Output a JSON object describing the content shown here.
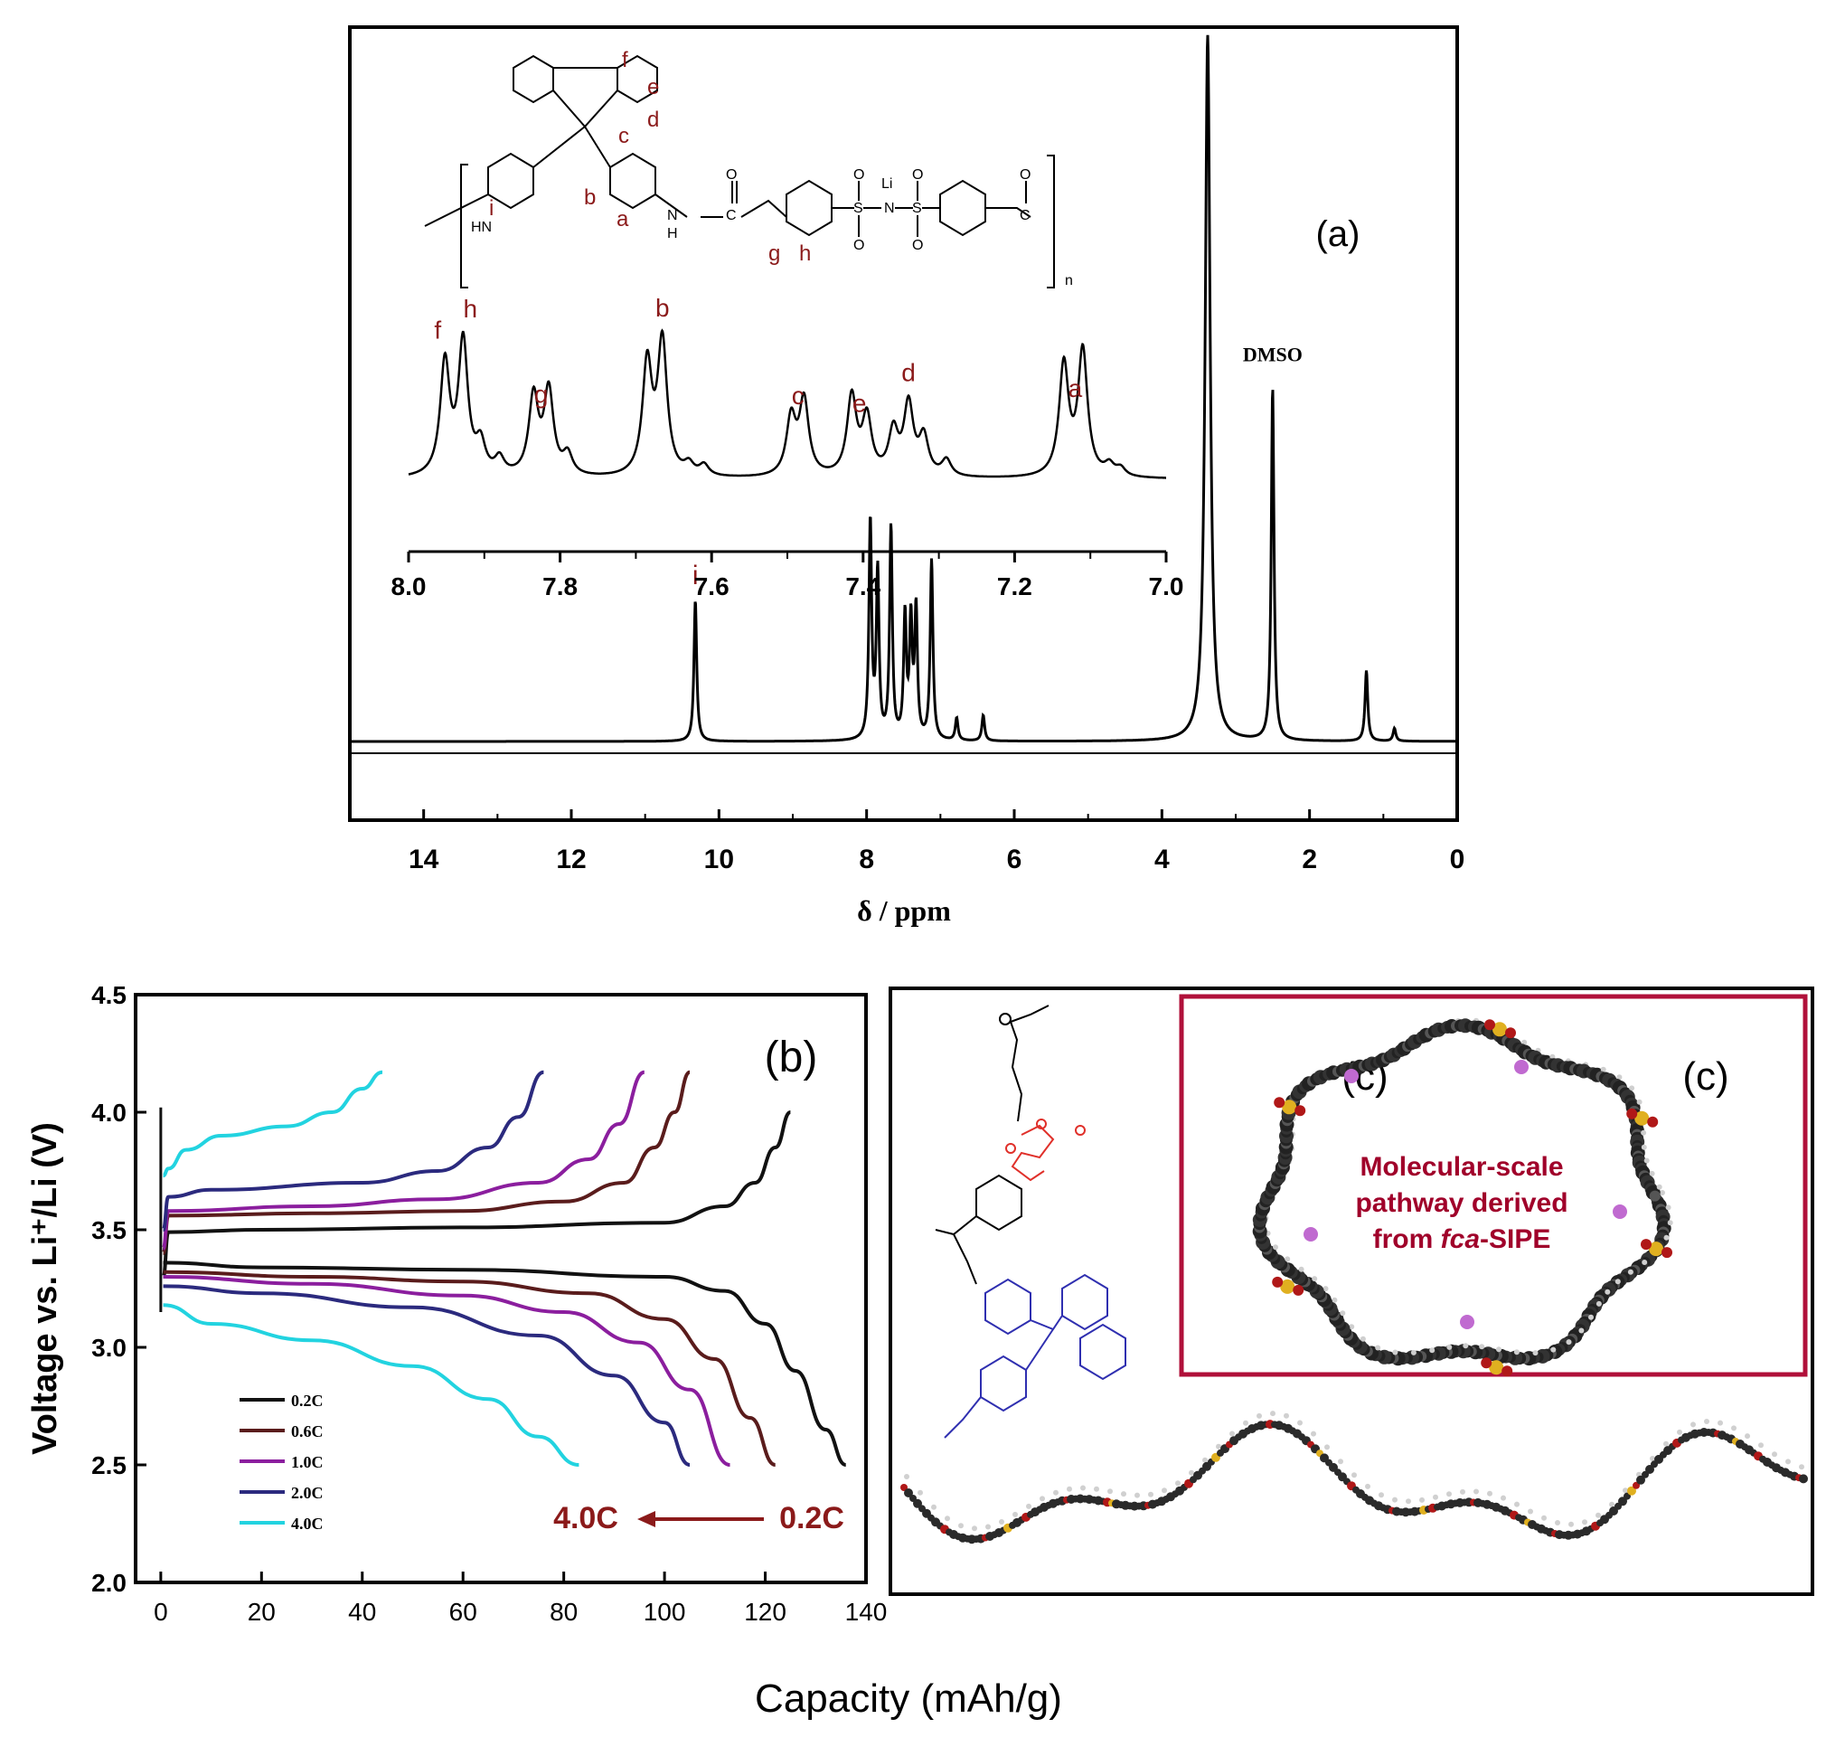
{
  "chart_data": [
    {
      "panel": "(a)",
      "type": "line",
      "xlabel": "δ / ppm",
      "xlim": [
        15,
        0
      ],
      "x_ticks": [
        "14",
        "12",
        "10",
        "8",
        "6",
        "4",
        "2",
        "0"
      ],
      "peaks": [
        {
          "x": 10.32,
          "y": 0.44,
          "label": "i"
        },
        {
          "x": 7.95,
          "y": 0.68
        },
        {
          "x": 7.85,
          "y": 0.52
        },
        {
          "x": 7.67,
          "y": 0.66
        },
        {
          "x": 7.48,
          "y": 0.38
        },
        {
          "x": 7.4,
          "y": 0.36
        },
        {
          "x": 7.33,
          "y": 0.4
        },
        {
          "x": 7.12,
          "y": 0.56
        },
        {
          "x": 6.78,
          "y": 0.07
        },
        {
          "x": 6.42,
          "y": 0.08
        },
        {
          "x": 3.38,
          "y": 2.2
        },
        {
          "x": 2.5,
          "y": 1.1,
          "label": "DMSO"
        },
        {
          "x": 1.23,
          "y": 0.22
        },
        {
          "x": 0.85,
          "y": 0.04
        }
      ],
      "peak_label_dmso": "DMSO",
      "inset": {
        "xlim": [
          8.0,
          7.0
        ],
        "x_ticks": [
          "8.0",
          "7.8",
          "7.6",
          "7.4",
          "7.2",
          "7.0"
        ],
        "peaks": [
          {
            "x": 7.952,
            "y": 0.83
          },
          {
            "x": 7.928,
            "y": 0.98
          },
          {
            "x": 7.905,
            "y": 0.22
          },
          {
            "x": 7.88,
            "y": 0.12
          },
          {
            "x": 7.835,
            "y": 0.58
          },
          {
            "x": 7.815,
            "y": 0.62
          },
          {
            "x": 7.79,
            "y": 0.15
          },
          {
            "x": 7.685,
            "y": 0.82
          },
          {
            "x": 7.665,
            "y": 0.98
          },
          {
            "x": 7.63,
            "y": 0.08
          },
          {
            "x": 7.61,
            "y": 0.08
          },
          {
            "x": 7.495,
            "y": 0.42
          },
          {
            "x": 7.478,
            "y": 0.55
          },
          {
            "x": 7.415,
            "y": 0.58
          },
          {
            "x": 7.395,
            "y": 0.42
          },
          {
            "x": 7.36,
            "y": 0.32
          },
          {
            "x": 7.34,
            "y": 0.52
          },
          {
            "x": 7.32,
            "y": 0.28
          },
          {
            "x": 7.29,
            "y": 0.12
          },
          {
            "x": 7.135,
            "y": 0.82
          },
          {
            "x": 7.11,
            "y": 0.92
          },
          {
            "x": 7.075,
            "y": 0.08
          },
          {
            "x": 7.06,
            "y": 0.06
          }
        ],
        "peak_labels": [
          {
            "label": "f",
            "x": 7.952
          },
          {
            "label": "h",
            "x": 7.928
          },
          {
            "label": "g",
            "x": 7.825
          },
          {
            "label": "b",
            "x": 7.665
          },
          {
            "label": "c",
            "x": 7.486
          },
          {
            "label": "e",
            "x": 7.405
          },
          {
            "label": "d",
            "x": 7.34
          },
          {
            "label": "a",
            "x": 7.12
          }
        ]
      }
    },
    {
      "panel": "(b)",
      "type": "line",
      "xlabel": "Capacity (mAh/g)",
      "ylabel": "Voltage vs. Li⁺/Li (V)",
      "xlim": [
        -5,
        140
      ],
      "ylim": [
        2.0,
        4.5
      ],
      "x_ticks": [
        "0",
        "20",
        "40",
        "60",
        "80",
        "100",
        "120",
        "140"
      ],
      "y_ticks": [
        "2.0",
        "2.5",
        "3.0",
        "3.5",
        "4.0",
        "4.5"
      ],
      "rate_annotation": {
        "from": "4.0C",
        "to": "0.2C"
      },
      "series": [
        {
          "name": "0.2C",
          "color": "#111111",
          "charge": [
            [
              0.5,
              3.3
            ],
            [
              1.5,
              3.49
            ],
            [
              20,
              3.5
            ],
            [
              60,
              3.51
            ],
            [
              100,
              3.53
            ],
            [
              112,
              3.6
            ],
            [
              118,
              3.7
            ],
            [
              122,
              3.85
            ],
            [
              125,
              4.0
            ]
          ],
          "discharge": [
            [
              0.5,
              3.36
            ],
            [
              20,
              3.34
            ],
            [
              60,
              3.33
            ],
            [
              100,
              3.3
            ],
            [
              112,
              3.24
            ],
            [
              120,
              3.1
            ],
            [
              126,
              2.9
            ],
            [
              132,
              2.65
            ],
            [
              136,
              2.5
            ]
          ]
        },
        {
          "name": "0.6C",
          "color": "#5a1c1c",
          "charge": [
            [
              0.5,
              3.4
            ],
            [
              1.5,
              3.56
            ],
            [
              30,
              3.57
            ],
            [
              60,
              3.58
            ],
            [
              80,
              3.62
            ],
            [
              92,
              3.7
            ],
            [
              98,
              3.85
            ],
            [
              102,
              4.0
            ],
            [
              105,
              4.17
            ]
          ],
          "discharge": [
            [
              0.5,
              3.32
            ],
            [
              30,
              3.3
            ],
            [
              60,
              3.28
            ],
            [
              85,
              3.23
            ],
            [
              100,
              3.12
            ],
            [
              110,
              2.95
            ],
            [
              117,
              2.7
            ],
            [
              122,
              2.5
            ]
          ]
        },
        {
          "name": "1.0C",
          "color": "#8b1e9e",
          "charge": [
            [
              0.5,
              3.42
            ],
            [
              1.5,
              3.58
            ],
            [
              30,
              3.6
            ],
            [
              55,
              3.63
            ],
            [
              75,
              3.7
            ],
            [
              85,
              3.8
            ],
            [
              91,
              3.95
            ],
            [
              96,
              4.17
            ]
          ],
          "discharge": [
            [
              0.5,
              3.3
            ],
            [
              30,
              3.27
            ],
            [
              60,
              3.22
            ],
            [
              80,
              3.15
            ],
            [
              95,
              3.02
            ],
            [
              105,
              2.82
            ],
            [
              113,
              2.5
            ]
          ]
        },
        {
          "name": "2.0C",
          "color": "#2b2a7e",
          "charge": [
            [
              0.5,
              3.5
            ],
            [
              1.5,
              3.64
            ],
            [
              10,
              3.67
            ],
            [
              40,
              3.7
            ],
            [
              55,
              3.75
            ],
            [
              65,
              3.85
            ],
            [
              71,
              3.98
            ],
            [
              76,
              4.17
            ]
          ],
          "discharge": [
            [
              0.5,
              3.26
            ],
            [
              20,
              3.23
            ],
            [
              50,
              3.17
            ],
            [
              75,
              3.05
            ],
            [
              90,
              2.88
            ],
            [
              100,
              2.68
            ],
            [
              105,
              2.5
            ]
          ]
        },
        {
          "name": "4.0C",
          "color": "#22d3e0",
          "charge": [
            [
              0.5,
              3.73
            ],
            [
              1.5,
              3.76
            ],
            [
              5,
              3.84
            ],
            [
              12,
              3.9
            ],
            [
              25,
              3.94
            ],
            [
              34,
              4.0
            ],
            [
              40,
              4.1
            ],
            [
              44,
              4.17
            ]
          ],
          "discharge": [
            [
              0.5,
              3.18
            ],
            [
              10,
              3.1
            ],
            [
              30,
              3.03
            ],
            [
              50,
              2.92
            ],
            [
              65,
              2.78
            ],
            [
              75,
              2.62
            ],
            [
              83,
              2.5
            ]
          ]
        }
      ]
    },
    {
      "panel": "(c)",
      "type": "other",
      "labels": [
        "(c)",
        "(c)"
      ],
      "annotation": {
        "part1": "Molecular-scale",
        "part2": "pathway derived",
        "part3_prefix": "from ",
        "part3_italic": "fca",
        "part3_suffix": "-SIPE"
      },
      "accent_color": "#a0002a"
    }
  ],
  "structure": {
    "labels": [
      "f",
      "e",
      "d",
      "c",
      "b",
      "a",
      "g",
      "h",
      "i",
      "n"
    ],
    "atoms": {
      "hn": "HN",
      "nh": "N",
      "h": "H",
      "li": "Li",
      "o": "O",
      "c": "C",
      "s": "S",
      "n": "N"
    },
    "label_color": "#8b1a1a"
  },
  "colors": {
    "accent_red": "#8b1a1a",
    "box_red": "#b0103a"
  }
}
